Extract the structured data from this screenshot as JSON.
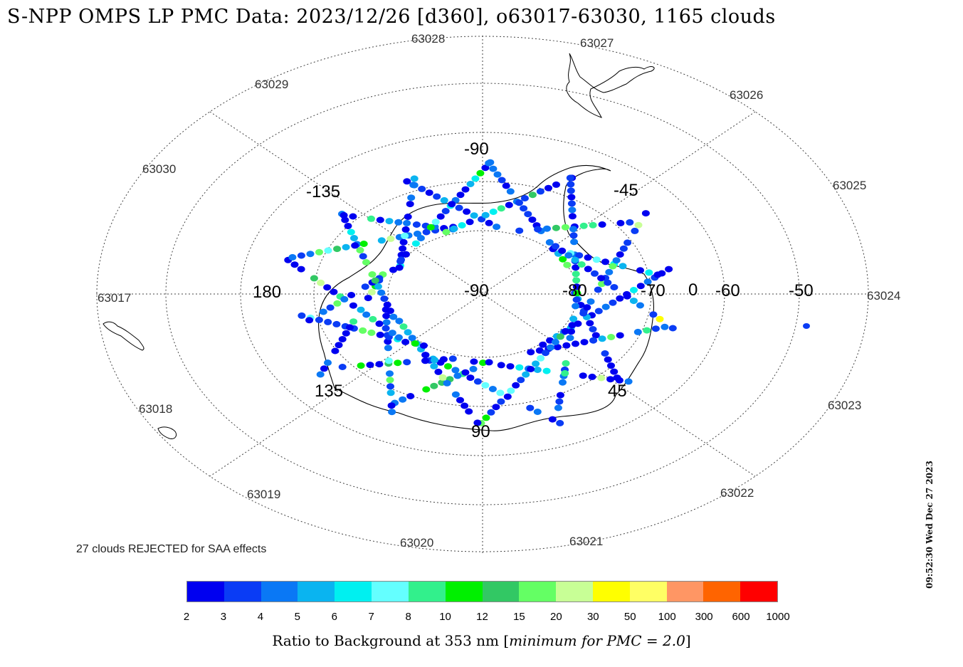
{
  "title": "S-NPP OMPS LP PMC Data: 2023/12/26 [d360], o63017-63030, 1165 clouds",
  "rejected_note": "27 clouds REJECTED for SAA effects",
  "timestamp": "09:52:30 Wed Dec 27 2023",
  "colorbar": {
    "label_prefix": "Ratio to Background at 353 nm [",
    "label_italic": "minimum for PMC = 2.0",
    "label_suffix": "]",
    "ticks": [
      "2",
      "3",
      "4",
      "5",
      "6",
      "7",
      "8",
      "10",
      "12",
      "15",
      "20",
      "30",
      "50",
      "100",
      "300",
      "600",
      "1000"
    ],
    "colors": [
      "#0000f0",
      "#0a3cf5",
      "#0a78f5",
      "#0ab4f0",
      "#00f0f0",
      "#64ffff",
      "#32f08c",
      "#00f000",
      "#32c864",
      "#64ff64",
      "#c8ff96",
      "#ffff00",
      "#ffff64",
      "#ff9664",
      "#ff6400",
      "#ff0000"
    ]
  },
  "map": {
    "orbit_labels": [
      "63017",
      "63018",
      "63019",
      "63020",
      "63021",
      "63022",
      "63023",
      "63024",
      "63025",
      "63026",
      "63027",
      "63028",
      "63029",
      "63030"
    ],
    "longitude_labels": [
      "180",
      "-135",
      "-90",
      "-45",
      "0",
      "45",
      "90",
      "135"
    ],
    "latitude_labels": [
      "-90",
      "-80",
      "-70",
      "-60",
      "-50"
    ]
  }
}
